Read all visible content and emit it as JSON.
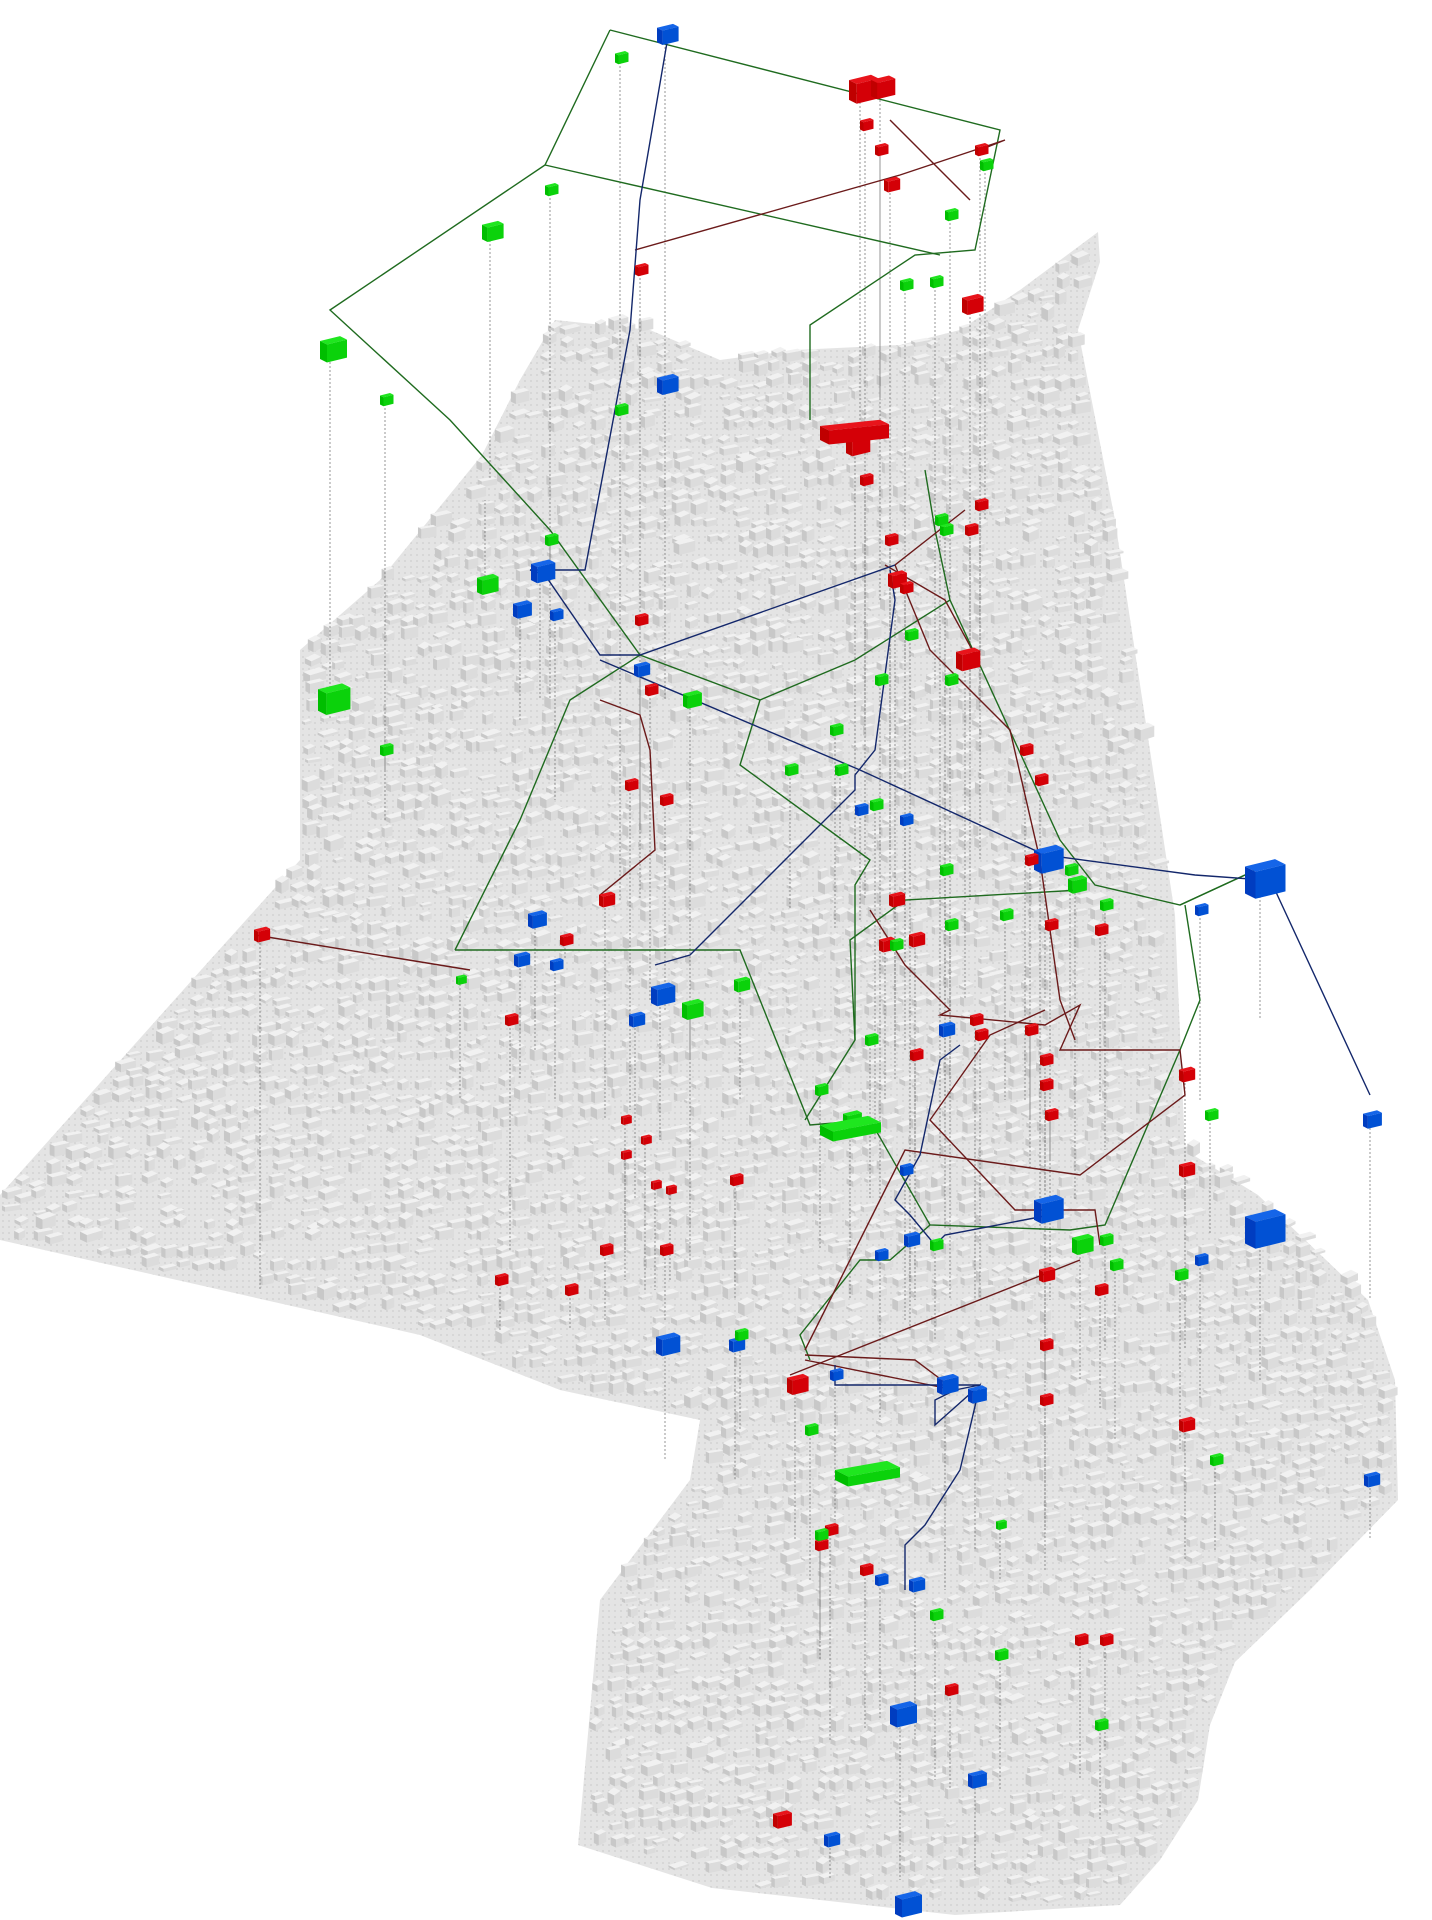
{
  "diagram": {
    "style": "axonometric city massing model with three overlaid networks",
    "colors": {
      "ground": "#e4e4e4",
      "ground_dots": "#cfcfcf",
      "building": "#f1f1f1",
      "building_side": "#c8c8c8",
      "red_network": "#e8141b",
      "red_line": "#6b1a1a",
      "green_network": "#1fe61f",
      "green_line": "#1f6b1f",
      "blue_network": "#1565e8",
      "blue_line": "#13276b",
      "drop_line": "#6a6a6a"
    },
    "networks": [
      {
        "name": "red-network",
        "color_key": "red_network",
        "line_key": "red_line"
      },
      {
        "name": "green-network",
        "color_key": "green_network",
        "line_key": "green_line"
      },
      {
        "name": "blue-network",
        "color_key": "blue_network",
        "line_key": "blue_line"
      }
    ]
  }
}
